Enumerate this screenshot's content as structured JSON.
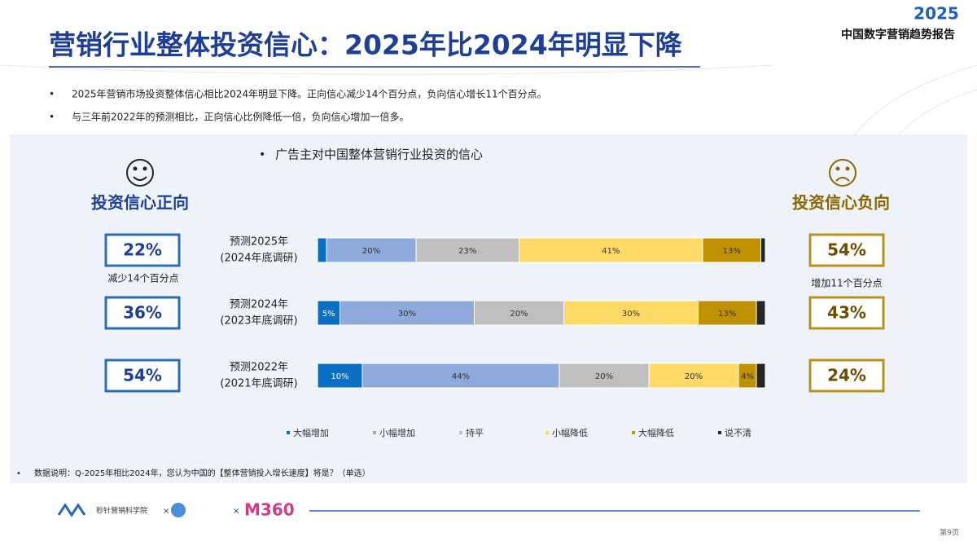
{
  "header": {
    "title": "营销行业整体投资信心：2025年比2024年明显下降",
    "brand_year": "2025",
    "brand_name": "中国数字营销趋势报告"
  },
  "bullets": [
    "2025年营销市场投资整体信心相比2024年明显下降。正向信心减少14个百分点，负向信心增长11个百分点。",
    "与三年前2022年的预测相比，正向信心比例降低一倍，负向信心增加一倍多。"
  ],
  "positive": {
    "label": "投资信心正向",
    "values": [
      "22%",
      "36%",
      "54%"
    ],
    "note": "减少14个百分点"
  },
  "negative": {
    "label": "投资信心负向",
    "values": [
      "54%",
      "43%",
      "24%"
    ],
    "note": "增加11个百分点"
  },
  "chart_data": {
    "type": "stacked_bar",
    "title": "广告主对中国整体营销行业投资的信心",
    "categories": [
      "预测2025年",
      "预测2024年",
      "预测2022年"
    ],
    "category_sublabels": [
      "(2024年底调研)",
      "(2023年底调研)",
      "(2021年底调研)"
    ],
    "xlim": [
      0,
      100
    ],
    "series": [
      {
        "name": "大幅增加",
        "color": "#0a6fc2",
        "values": [
          2,
          5,
          10
        ],
        "value_labels": [
          null,
          "5%",
          "10%"
        ]
      },
      {
        "name": "小幅增加",
        "color": "#8eaadb",
        "values": [
          20,
          30,
          44
        ],
        "value_labels": [
          "20%",
          "30%",
          "44%"
        ]
      },
      {
        "name": "持平",
        "color": "#bfbfbf",
        "values": [
          23,
          20,
          20
        ],
        "value_labels": [
          "23%",
          "20%",
          "20%"
        ]
      },
      {
        "name": "小幅降低",
        "color": "#ffd966",
        "values": [
          41,
          30,
          20
        ],
        "value_labels": [
          "41%",
          "30%",
          "20%"
        ]
      },
      {
        "name": "大幅降低",
        "color": "#bf9000",
        "values": [
          13,
          13,
          4
        ],
        "value_labels": [
          "13%",
          "13%",
          "4%"
        ]
      },
      {
        "name": "说不清",
        "color": "#262626",
        "values": [
          1,
          2,
          2
        ],
        "value_labels": [
          null,
          null,
          null
        ]
      }
    ]
  },
  "footnote": "数据说明：Q-2025年相比2024年，您认为中国的【整体营销投入增长速度】将是？（单选）",
  "logos": [
    "秒针营销科学院",
    "M360"
  ],
  "page": "第9页"
}
